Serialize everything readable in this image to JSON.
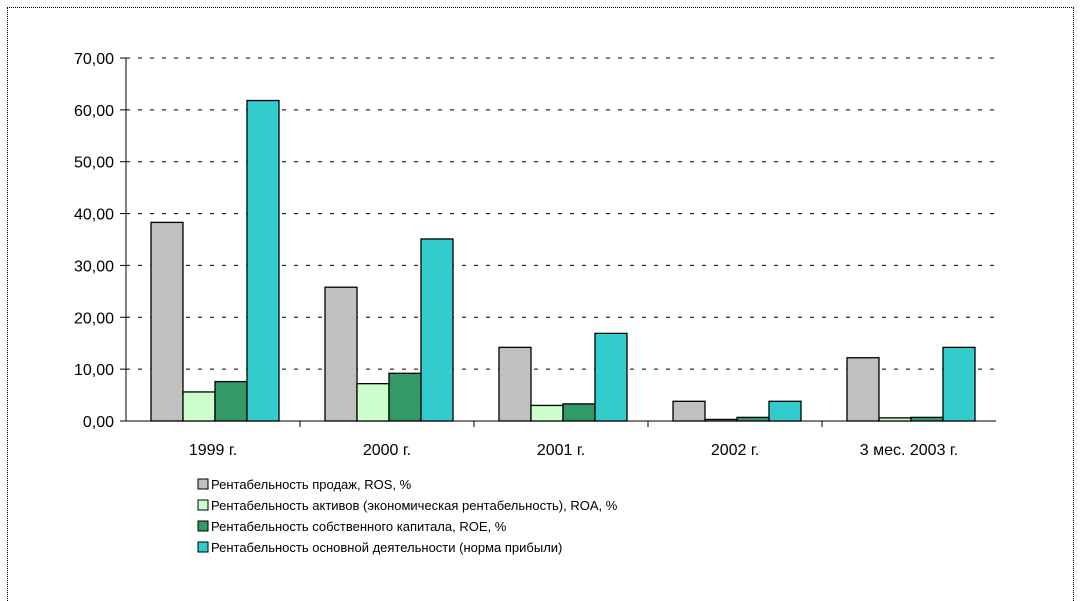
{
  "chart_data": {
    "type": "bar",
    "categories": [
      "1999 г.",
      "2000 г.",
      "2001 г.",
      "2002 г.",
      "3 мес. 2003 г."
    ],
    "ylim": [
      0,
      70
    ],
    "yticks": [
      "0,00",
      "10,00",
      "20,00",
      "30,00",
      "40,00",
      "50,00",
      "60,00",
      "70,00"
    ],
    "grid": "dashed horizontal",
    "legend_position": "bottom",
    "series": [
      {
        "name": "Рентабельность продаж, ROS, %",
        "color": "#c0c0c0",
        "values": [
          38.3,
          25.8,
          14.2,
          3.8,
          12.2
        ]
      },
      {
        "name": "Рентабельность активов (экономическая рентабельность), ROA, %",
        "color": "#ccffcc",
        "values": [
          5.6,
          7.2,
          3.0,
          0.3,
          0.6
        ]
      },
      {
        "name": "Рентабельность собственного капитала, ROE, %",
        "color": "#339966",
        "values": [
          7.6,
          9.2,
          3.3,
          0.7,
          0.7
        ]
      },
      {
        "name": "Рентабельность основной деятельности (норма прибыли)",
        "color": "#33cccc",
        "values": [
          61.8,
          35.1,
          16.9,
          3.8,
          14.2
        ]
      }
    ]
  }
}
